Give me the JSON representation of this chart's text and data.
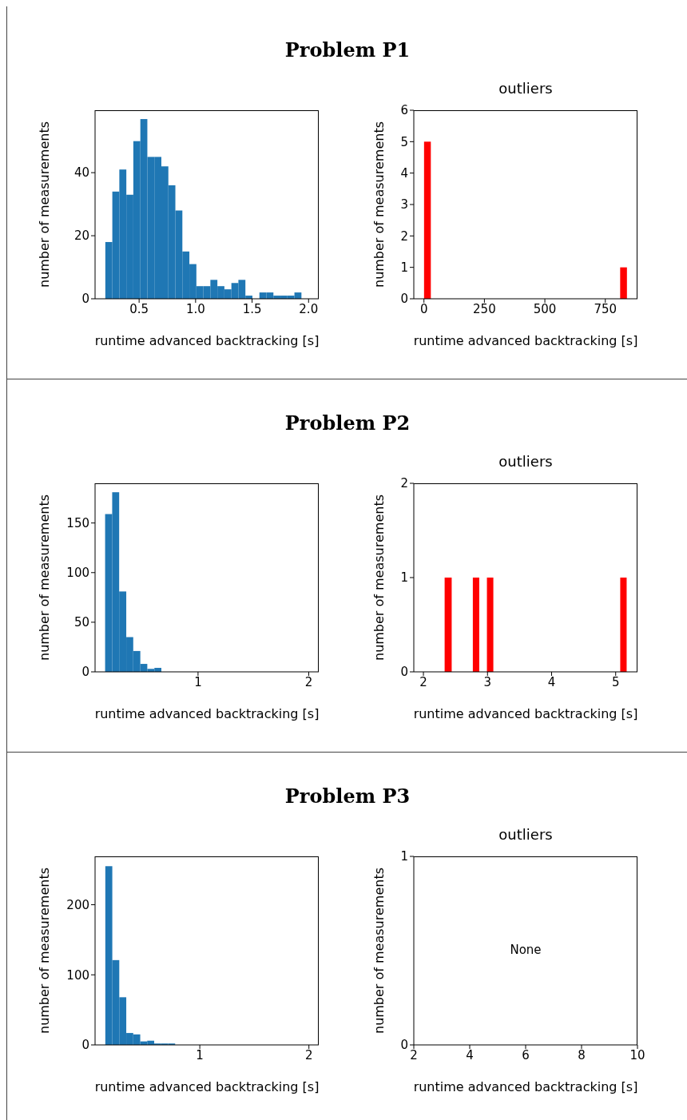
{
  "chart_data": [
    {
      "type": "histogram",
      "title": "Problem P1",
      "xlabel": "runtime advanced backtracking [s]",
      "ylabel": "number of measurements",
      "color": "#1f77b4",
      "bins": [
        0.2,
        0.262,
        0.324,
        0.386,
        0.448,
        0.51,
        0.572,
        0.634,
        0.696,
        0.758,
        0.82,
        0.882,
        0.944,
        1.006,
        1.068,
        1.13,
        1.192,
        1.254,
        1.316,
        1.378,
        1.44,
        1.502,
        1.564,
        1.626,
        1.688,
        1.75,
        1.812,
        1.874,
        1.936
      ],
      "values": [
        18,
        34,
        41,
        33,
        50,
        57,
        45,
        45,
        42,
        36,
        28,
        15,
        11,
        4,
        4,
        6,
        4,
        3,
        5,
        6,
        1,
        0,
        2,
        2,
        1,
        1,
        1,
        2
      ],
      "xlim": [
        0.11,
        2.09
      ],
      "ylim": [
        0,
        59.8
      ],
      "xticks": [
        0.5,
        {
          "value": 1,
          "label": "1.0"
        },
        1.5,
        {
          "value": 2,
          "label": "2.0"
        }
      ],
      "yticks": [
        0,
        20,
        40
      ]
    },
    {
      "type": "histogram",
      "title": "outliers",
      "xlabel": "runtime advanced backtracking [s]",
      "ylabel": "number of measurements",
      "color": "#ff0000",
      "bins": [
        0,
        28,
        811,
        839
      ],
      "values": [
        5,
        0,
        1
      ],
      "xlim": [
        -42,
        883
      ],
      "ylim": [
        0,
        6
      ],
      "xticks": [
        0,
        250,
        500,
        750
      ],
      "yticks": [
        0,
        1,
        2,
        3,
        4,
        5,
        6
      ]
    },
    {
      "type": "histogram",
      "title": "Problem P2",
      "xlabel": "runtime advanced backtracking [s]",
      "ylabel": "number of measurements",
      "color": "#1f77b4",
      "bins": [
        0.16,
        0.224,
        0.287,
        0.351,
        0.414,
        0.478,
        0.541,
        0.605,
        0.668,
        0.732,
        0.795,
        0.859,
        0.922,
        0.986,
        1.049,
        1.113,
        1.176
      ],
      "values": [
        159,
        181,
        81,
        35,
        21,
        8,
        3,
        4,
        null,
        null,
        0,
        0,
        0,
        0,
        0,
        null
      ],
      "xlim": [
        0.07,
        2.09
      ],
      "ylim": [
        0,
        190
      ],
      "xticks": [
        1,
        2
      ],
      "yticks": [
        0,
        50,
        100,
        150
      ]
    },
    {
      "type": "histogram",
      "title": "outliers",
      "xlabel": "runtime advanced backtracking [s]",
      "ylabel": "number of measurements",
      "color": "#ff0000",
      "bins": [
        2.33,
        2.44,
        2.77,
        2.87,
        2.99,
        3.09,
        5.07,
        5.17
      ],
      "values": [
        1,
        0,
        1,
        0,
        1,
        0,
        1
      ],
      "xlim": [
        1.85,
        5.34
      ],
      "ylim": [
        0,
        2
      ],
      "xticks": [
        2,
        3,
        4,
        5
      ],
      "yticks": [
        0,
        1,
        2
      ]
    },
    {
      "type": "histogram",
      "title": "Problem P3",
      "xlabel": "runtime advanced backtracking [s]",
      "ylabel": "number of measurements",
      "color": "#1f77b4",
      "bins": [
        0.133,
        0.197,
        0.261,
        0.325,
        0.389,
        0.453,
        0.517,
        0.581,
        0.645,
        0.709,
        0.773,
        0.837,
        0.901,
        0.965,
        1.029,
        1.093,
        1.157,
        1.221,
        1.285,
        1.349,
        1.413,
        1.477,
        1.541
      ],
      "values": [
        255,
        121,
        68,
        17,
        15,
        5,
        6,
        2,
        2,
        2,
        0,
        0,
        0,
        0,
        0,
        null,
        0,
        null,
        0,
        0,
        0,
        null
      ],
      "xlim": [
        0.04,
        2.09
      ],
      "ylim": [
        0,
        269
      ],
      "xticks": [
        1,
        2
      ],
      "yticks": [
        0,
        100,
        200
      ]
    },
    {
      "type": "histogram",
      "title": "outliers",
      "xlabel": "runtime advanced backtracking [s]",
      "ylabel": "number of measurements",
      "annotations": [
        "None"
      ],
      "xlim": [
        2,
        10
      ],
      "ylim": [
        0,
        1
      ],
      "xticks": [
        2,
        4,
        6,
        8,
        10
      ],
      "yticks": [
        0,
        1
      ]
    }
  ]
}
